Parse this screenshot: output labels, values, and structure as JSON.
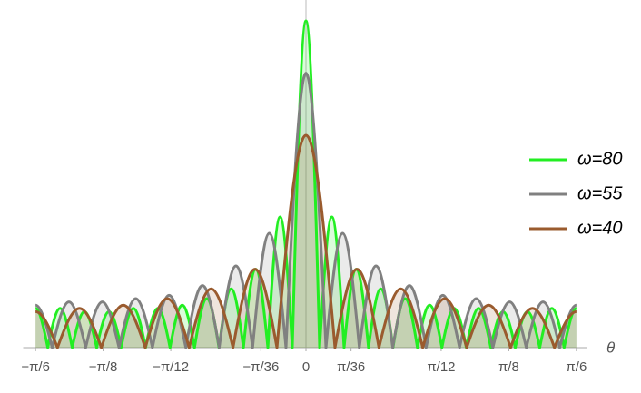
{
  "chart_data": {
    "type": "line",
    "xlabel": "θ",
    "xlim": [
      -0.53,
      0.53
    ],
    "ylim": [
      0,
      105
    ],
    "xticks": [
      {
        "value": -0.5236,
        "label": "−π/6"
      },
      {
        "value": -0.3927,
        "label": "−π/8"
      },
      {
        "value": -0.2618,
        "label": "−π/12"
      },
      {
        "value": -0.0873,
        "label": "−π/36"
      },
      0,
      {
        "value": 0.0873,
        "label": "π/36"
      },
      {
        "value": 0.2618,
        "label": "π/12"
      },
      {
        "value": 0.3927,
        "label": "π/8"
      },
      {
        "value": 0.5236,
        "label": "π/6"
      }
    ],
    "filled": true,
    "legend": "right",
    "series": [
      {
        "name": "ω=80",
        "color": "#22ee22",
        "x": [
          -0.5236,
          -0.4999,
          -0.4761,
          -0.4526,
          -0.4289,
          -0.4052,
          -0.3814,
          -0.3579,
          -0.3342,
          -0.3105,
          -0.2867,
          -0.2632,
          -0.2395,
          -0.2158,
          -0.192,
          -0.1685,
          -0.1448,
          -0.1211,
          -0.0973,
          -0.0738,
          -0.0501,
          -0.0264,
          0,
          0.0264,
          0.0501,
          0.0738,
          0.0973,
          0.1211,
          0.1448,
          0.1685,
          0.192,
          0.2158,
          0.2395,
          0.2632,
          0.2867,
          0.3105,
          0.3342,
          0.3579,
          0.3814,
          0.4052,
          0.4289,
          0.4526,
          0.4761,
          0.4999,
          0.5236
        ],
        "values": [
          12,
          0,
          12,
          0,
          11,
          0,
          11,
          0,
          12,
          0,
          12,
          0,
          13,
          0,
          15,
          0,
          18,
          0,
          24,
          0,
          40,
          0,
          100,
          0,
          40,
          0,
          24,
          0,
          18,
          0,
          15,
          0,
          13,
          0,
          12,
          0,
          12,
          0,
          11,
          0,
          11,
          0,
          12,
          0,
          12
        ]
      },
      {
        "name": "ω=55",
        "color": "#808080",
        "x": [
          -0.5236,
          -0.4913,
          -0.4589,
          -0.4266,
          -0.3943,
          -0.3619,
          -0.3296,
          -0.2973,
          -0.265,
          -0.2326,
          -0.2003,
          -0.168,
          -0.1356,
          -0.1033,
          -0.071,
          -0.0387,
          0,
          0.0387,
          0.071,
          0.1033,
          0.1356,
          0.168,
          0.2003,
          0.2326,
          0.265,
          0.2973,
          0.3296,
          0.3619,
          0.3943,
          0.4266,
          0.4589,
          0.4913,
          0.5236
        ],
        "values": [
          13,
          0,
          14,
          0,
          14,
          0,
          15,
          0,
          16,
          0,
          19,
          0,
          25,
          0,
          35,
          0,
          84,
          0,
          35,
          0,
          25,
          0,
          19,
          0,
          16,
          0,
          15,
          0,
          14,
          0,
          14,
          0,
          13
        ]
      },
      {
        "name": "ω=40",
        "color": "#9a5b2e",
        "x": [
          -0.5236,
          -0.4811,
          -0.4385,
          -0.3962,
          -0.3537,
          -0.3112,
          -0.2686,
          -0.2261,
          -0.1836,
          -0.1413,
          -0.0987,
          -0.0562,
          0,
          0.0562,
          0.0987,
          0.1413,
          0.1836,
          0.2261,
          0.2686,
          0.3112,
          0.3537,
          0.3962,
          0.4385,
          0.4811,
          0.5236
        ],
        "values": [
          11,
          0,
          12,
          0,
          13,
          0,
          15,
          0,
          18,
          0,
          24,
          0,
          65,
          0,
          24,
          0,
          18,
          0,
          15,
          0,
          13,
          0,
          12,
          0,
          11
        ]
      }
    ]
  }
}
